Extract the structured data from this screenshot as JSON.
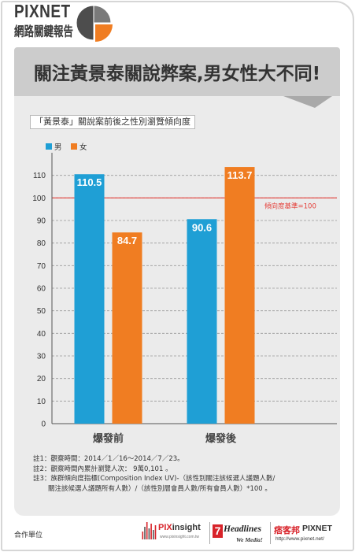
{
  "header": {
    "brand": "PIXNET",
    "report_title": "網路關鍵報告"
  },
  "banner": {
    "headline": "關注黃景泰關說弊案,男女性大不同!"
  },
  "colors": {
    "banner": "#cccccc",
    "panel": "#ebebeb",
    "fold": "#a9a9a9"
  },
  "icons": {
    "report_logo": "pie-chart-icon",
    "pixinsight_logo": "equalizer-bars-icon"
  },
  "chart_data": {
    "type": "bar",
    "title": "「黃景泰」關說案前後之性別瀏覽傾向度",
    "categories": [
      "爆發前",
      "爆發後"
    ],
    "series": [
      {
        "name": "男",
        "values": [
          110.5,
          90.6
        ],
        "color": "#1f9fd5"
      },
      {
        "name": "女",
        "values": [
          84.7,
          113.7
        ],
        "color": "#f07d22"
      }
    ],
    "ylim": [
      0,
      120
    ],
    "yticks": [
      0,
      10,
      20,
      30,
      40,
      50,
      60,
      70,
      80,
      90,
      100,
      110
    ],
    "grid": true,
    "legend": "top-left",
    "reference_line": {
      "value": 100,
      "label": "傾向度基準=100",
      "color": "#e5403a"
    }
  },
  "notes": [
    {
      "label": "註1：",
      "lines": [
        "觀察時間：2014／1／16～2014／7／23。"
      ]
    },
    {
      "label": "註2：",
      "lines": [
        "觀察時間內累計瀏覽人次： 9萬0,101 。"
      ]
    },
    {
      "label": "註3：",
      "lines": [
        "族群傾向度指標(Composition Index UV)-（該性別關注該候選人議題人數/",
        "關注該候選人議題所有人數）/（該性別層會員人數/所有會員人數）*100 。"
      ]
    }
  ],
  "footer": {
    "partners_label": "合作單位",
    "pixinsight": {
      "name_prefix": "PIX",
      "name_suffix": "insight",
      "url": "www.pixinsight.com.tw"
    },
    "headlines": {
      "badge": "7",
      "name": "Headlines",
      "tagline": "We Media!"
    },
    "pixnet": {
      "name_zh": "痞客邦",
      "name_en": "PIXNET",
      "url": "http://www.pixnet.net/"
    }
  }
}
